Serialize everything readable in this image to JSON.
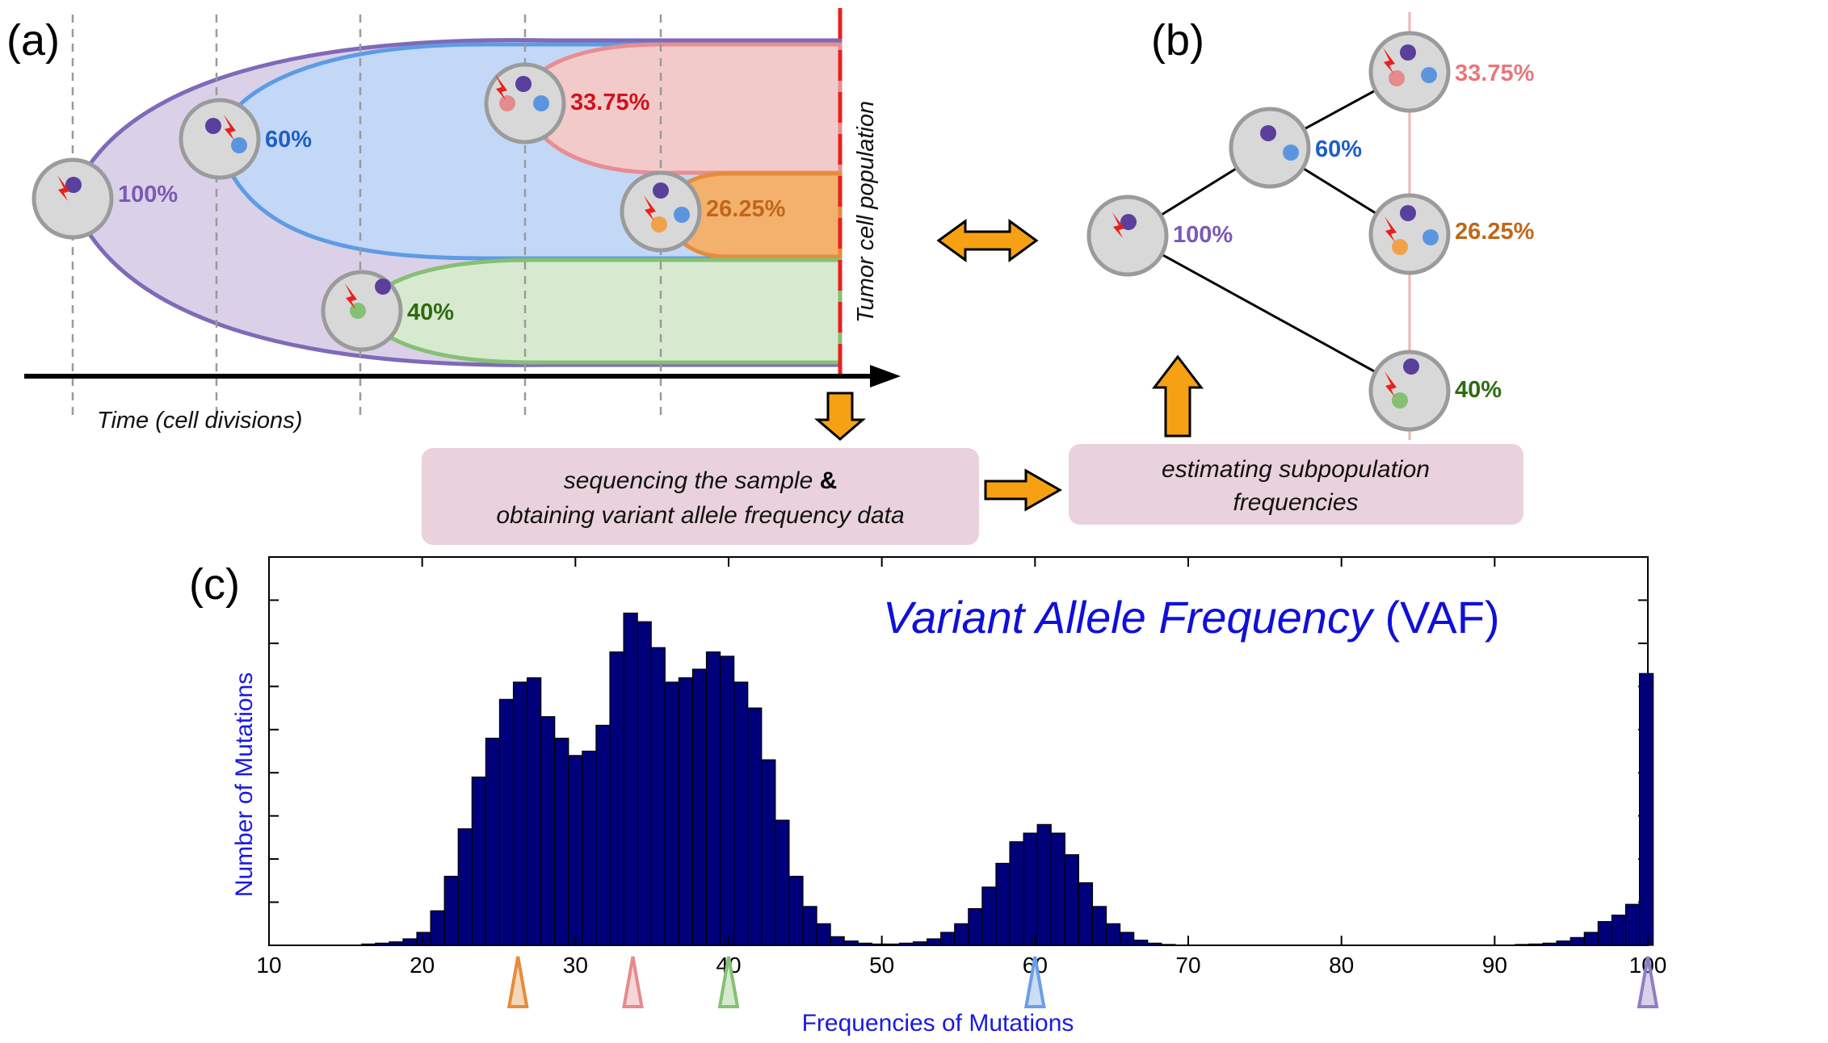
{
  "panels": {
    "a": "(a)",
    "b": "(b)",
    "c": "(c)"
  },
  "panel_a": {
    "time_label": "Time (cell divisions)",
    "population_label": "Tumor cell population",
    "percentages": {
      "p100": "100%",
      "p60": "60%",
      "p40": "40%",
      "p3375": "33.75%",
      "p2625": "26.25%"
    }
  },
  "panel_b": {
    "percentages": {
      "p100": "100%",
      "p60": "60%",
      "p40": "40%",
      "p3375": "33.75%",
      "p2625": "26.25%"
    }
  },
  "flow": {
    "box1_line1": "sequencing the sample ",
    "box1_amp": "&",
    "box1_line2": "obtaining variant allele frequency data",
    "box2_line1": "estimating subpopulation",
    "box2_line2": "frequencies"
  },
  "colors": {
    "purple": "#7a64b5",
    "blue": "#5b95e0",
    "red": "#e58a8e",
    "orange": "#f0a24a",
    "green": "#86c074",
    "pct_purple": "#7b59b5",
    "pct_blue": "#1f5fc4",
    "pct_red": "#d0121b",
    "pct_orange": "#c0671a",
    "pct_green": "#2f6b10",
    "bar": "#00007a",
    "title_blue": "#1010d8"
  },
  "chart_data": {
    "type": "bar",
    "title_italic": "Variant Allele Frequency",
    "title_plain": " (VAF)",
    "xlabel": "Frequencies of Mutations",
    "ylabel": "Number of Mutations",
    "xlim": [
      10,
      100
    ],
    "ylim": [
      0,
      9
    ],
    "xticks": [
      "10",
      "20",
      "30",
      "40",
      "50",
      "60",
      "70",
      "80",
      "90",
      "100"
    ],
    "bin_width": 0.9,
    "bins": [
      [
        16.5,
        0.03
      ],
      [
        17.4,
        0.05
      ],
      [
        18.3,
        0.08
      ],
      [
        19.2,
        0.15
      ],
      [
        20.1,
        0.3
      ],
      [
        21.0,
        0.8
      ],
      [
        21.9,
        1.6
      ],
      [
        22.8,
        2.7
      ],
      [
        23.7,
        3.9
      ],
      [
        24.6,
        4.8
      ],
      [
        25.5,
        5.7
      ],
      [
        26.4,
        6.1
      ],
      [
        27.3,
        6.2
      ],
      [
        28.2,
        5.3
      ],
      [
        29.1,
        4.8
      ],
      [
        30.0,
        4.4
      ],
      [
        30.9,
        4.5
      ],
      [
        31.8,
        5.1
      ],
      [
        32.7,
        6.8
      ],
      [
        33.6,
        7.7
      ],
      [
        34.5,
        7.5
      ],
      [
        35.4,
        6.9
      ],
      [
        36.3,
        6.1
      ],
      [
        37.2,
        6.2
      ],
      [
        38.1,
        6.4
      ],
      [
        39.0,
        6.8
      ],
      [
        39.9,
        6.7
      ],
      [
        40.8,
        6.1
      ],
      [
        41.7,
        5.5
      ],
      [
        42.6,
        4.3
      ],
      [
        43.5,
        2.9
      ],
      [
        44.4,
        1.6
      ],
      [
        45.3,
        0.9
      ],
      [
        46.2,
        0.5
      ],
      [
        47.1,
        0.2
      ],
      [
        48.0,
        0.1
      ],
      [
        48.9,
        0.05
      ],
      [
        49.8,
        0.03
      ],
      [
        50.7,
        0.03
      ],
      [
        51.6,
        0.05
      ],
      [
        52.5,
        0.08
      ],
      [
        53.4,
        0.15
      ],
      [
        54.3,
        0.3
      ],
      [
        55.2,
        0.5
      ],
      [
        56.1,
        0.85
      ],
      [
        57.0,
        1.35
      ],
      [
        57.9,
        1.9
      ],
      [
        58.8,
        2.4
      ],
      [
        59.7,
        2.6
      ],
      [
        60.6,
        2.8
      ],
      [
        61.5,
        2.6
      ],
      [
        62.4,
        2.1
      ],
      [
        63.3,
        1.45
      ],
      [
        64.2,
        0.9
      ],
      [
        65.1,
        0.5
      ],
      [
        66.0,
        0.3
      ],
      [
        66.9,
        0.12
      ],
      [
        67.8,
        0.05
      ],
      [
        68.7,
        0.02
      ],
      [
        91.8,
        0.02
      ],
      [
        92.7,
        0.03
      ],
      [
        93.6,
        0.05
      ],
      [
        94.5,
        0.1
      ],
      [
        95.4,
        0.18
      ],
      [
        96.3,
        0.3
      ],
      [
        97.2,
        0.55
      ],
      [
        98.1,
        0.7
      ],
      [
        99.0,
        0.95
      ],
      [
        99.9,
        6.3
      ]
    ],
    "markers": [
      {
        "x": 26.25,
        "color": "#e58c3a"
      },
      {
        "x": 33.75,
        "color": "#e58a8e"
      },
      {
        "x": 40,
        "color": "#86c074"
      },
      {
        "x": 60,
        "color": "#6b9fe4"
      },
      {
        "x": 100,
        "color": "#8f7ec4"
      }
    ]
  }
}
